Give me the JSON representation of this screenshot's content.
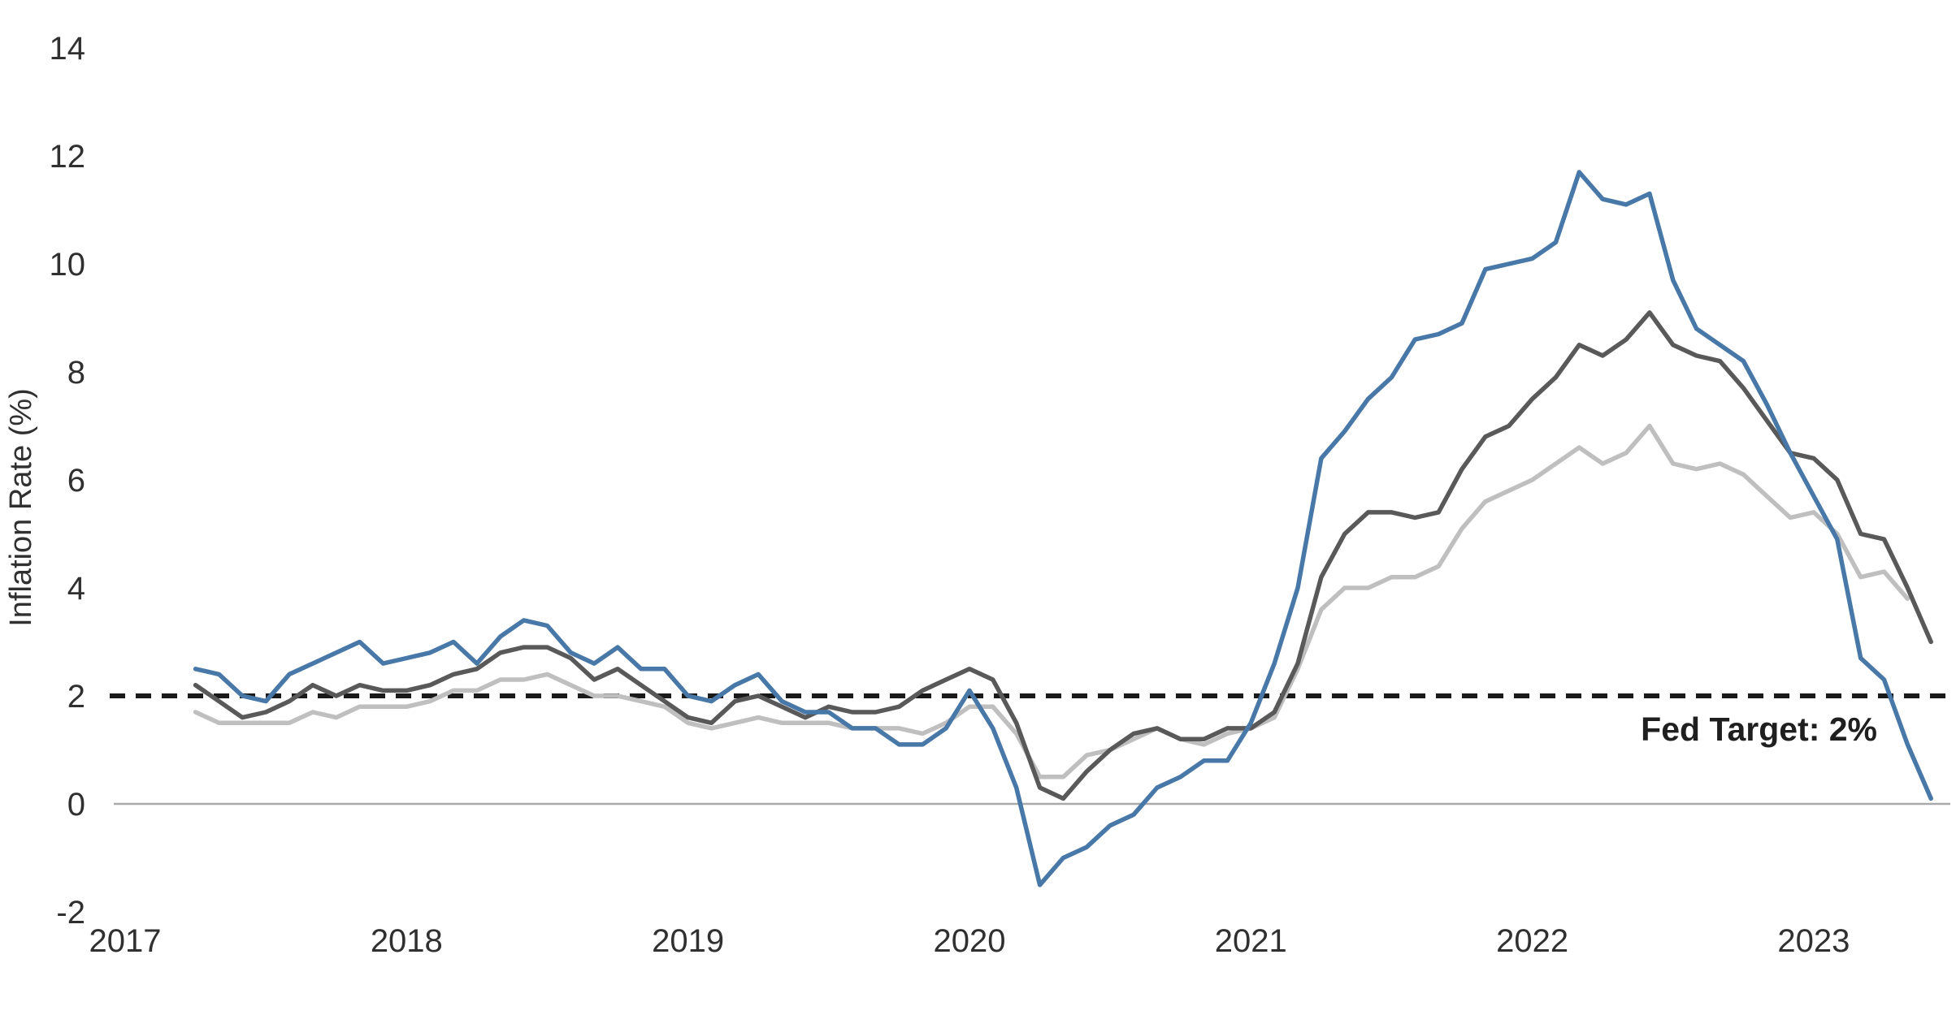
{
  "chart": {
    "ylabel": "Inflation Rate (%)",
    "fed_target_label": "Fed Target: 2%"
  },
  "chart_data": {
    "type": "line",
    "title": "",
    "xlabel": "",
    "ylabel": "Inflation Rate (%)",
    "x_unit": "month",
    "x_start": "Apr 2017",
    "x_end": "Jun 2023",
    "x_tick_labels": [
      "2017",
      "2018",
      "2019",
      "2020",
      "2021",
      "2022",
      "2023"
    ],
    "y_ticks": [
      -2,
      0,
      2,
      4,
      6,
      8,
      10,
      12,
      14
    ],
    "ylim": [
      -2,
      14
    ],
    "grid": "zero-baseline-only",
    "legend": "none",
    "target_line": {
      "label": "Fed Target: 2%",
      "value": 2,
      "style": "dashed",
      "color": "#1a1a1a"
    },
    "zero_line_color": "#a9a9a9",
    "series": [
      {
        "name": "light-gray-series",
        "color": "#bfbfbf",
        "start_month": "Apr 2017",
        "values": [
          1.7,
          1.5,
          1.5,
          1.5,
          1.5,
          1.7,
          1.6,
          1.8,
          1.8,
          1.8,
          1.9,
          2.1,
          2.1,
          2.3,
          2.3,
          2.4,
          2.2,
          2.0,
          2.0,
          1.9,
          1.8,
          1.5,
          1.4,
          1.5,
          1.6,
          1.5,
          1.5,
          1.5,
          1.4,
          1.4,
          1.4,
          1.3,
          1.5,
          1.8,
          1.8,
          1.3,
          0.5,
          0.5,
          0.9,
          1.0,
          1.2,
          1.4,
          1.2,
          1.1,
          1.3,
          1.4,
          1.6,
          2.5,
          3.6,
          4.0,
          4.0,
          4.2,
          4.2,
          4.4,
          5.1,
          5.6,
          5.8,
          6.0,
          6.3,
          6.6,
          6.3,
          6.5,
          7.0,
          6.3,
          6.2,
          6.3,
          6.1,
          5.7,
          5.3,
          5.4,
          5.0,
          4.2,
          4.3,
          3.8
        ]
      },
      {
        "name": "dark-gray-series",
        "color": "#595959",
        "start_month": "Apr 2017",
        "values": [
          2.2,
          1.9,
          1.6,
          1.7,
          1.9,
          2.2,
          2.0,
          2.2,
          2.1,
          2.1,
          2.2,
          2.4,
          2.5,
          2.8,
          2.9,
          2.9,
          2.7,
          2.3,
          2.5,
          2.2,
          1.9,
          1.6,
          1.5,
          1.9,
          2.0,
          1.8,
          1.6,
          1.8,
          1.7,
          1.7,
          1.8,
          2.1,
          2.3,
          2.5,
          2.3,
          1.5,
          0.3,
          0.1,
          0.6,
          1.0,
          1.3,
          1.4,
          1.2,
          1.2,
          1.4,
          1.4,
          1.7,
          2.6,
          4.2,
          5.0,
          5.4,
          5.4,
          5.3,
          5.4,
          6.2,
          6.8,
          7.0,
          7.5,
          7.9,
          8.5,
          8.3,
          8.6,
          9.1,
          8.5,
          8.3,
          8.2,
          7.7,
          7.1,
          6.5,
          6.4,
          6.0,
          5.0,
          4.9,
          4.0,
          3.0
        ]
      },
      {
        "name": "blue-series",
        "color": "#4878a8",
        "start_month": "Apr 2017",
        "values": [
          2.5,
          2.4,
          2.0,
          1.9,
          2.4,
          2.6,
          2.8,
          3.0,
          2.6,
          2.7,
          2.8,
          3.0,
          2.6,
          3.1,
          3.4,
          3.3,
          2.8,
          2.6,
          2.9,
          2.5,
          2.5,
          2.0,
          1.9,
          2.2,
          2.4,
          1.9,
          1.7,
          1.7,
          1.4,
          1.4,
          1.1,
          1.1,
          1.4,
          2.1,
          1.4,
          0.3,
          -1.5,
          -1.0,
          -0.8,
          -0.4,
          -0.2,
          0.3,
          0.5,
          0.8,
          0.8,
          1.5,
          2.6,
          4.0,
          6.4,
          6.9,
          7.5,
          7.9,
          8.6,
          8.7,
          8.9,
          9.9,
          10.0,
          10.1,
          10.4,
          11.7,
          11.2,
          11.1,
          11.3,
          9.7,
          8.8,
          8.5,
          8.2,
          7.4,
          6.5,
          5.7,
          4.9,
          2.7,
          2.3,
          1.1,
          0.1
        ]
      }
    ]
  }
}
